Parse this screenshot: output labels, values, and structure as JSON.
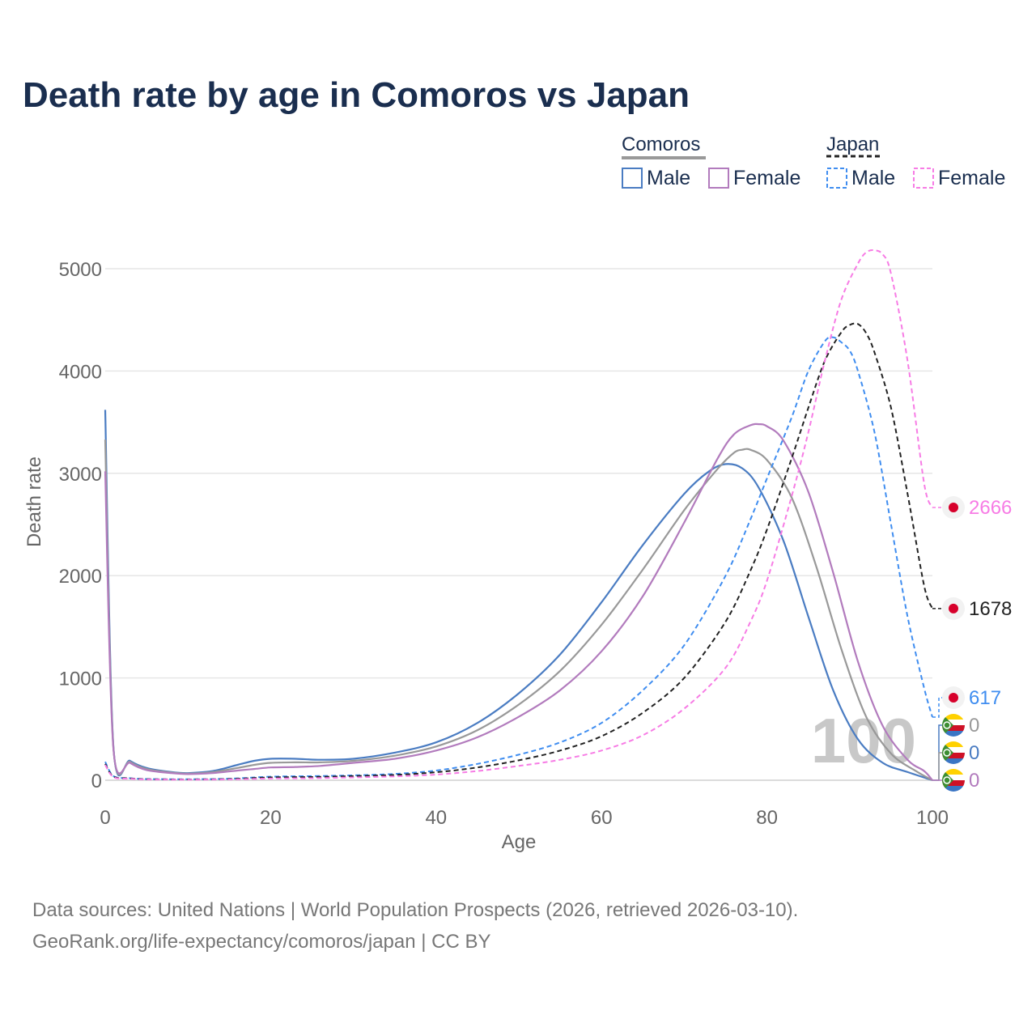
{
  "title": "Death rate by age in Comoros vs Japan",
  "legend": {
    "groups": [
      {
        "name": "Comoros",
        "dash": "solid",
        "line_color": "#999999"
      },
      {
        "name": "Japan",
        "dash": "dashed",
        "line_color": "#222222"
      }
    ],
    "items": [
      {
        "label": "Male",
        "group": "Comoros",
        "color": "#4a7cc2",
        "dash": "solid"
      },
      {
        "label": "Female",
        "group": "Comoros",
        "color": "#b27bbd",
        "dash": "solid"
      },
      {
        "label": "Male",
        "group": "Japan",
        "color": "#3f8df0",
        "dash": "dashed"
      },
      {
        "label": "Female",
        "group": "Japan",
        "color": "#f77ce5",
        "dash": "dashed"
      }
    ]
  },
  "watermark": "100",
  "source_line1": "Data sources: United Nations | World Population Prospects (2026, retrieved 2026-03-10).",
  "source_line2": "GeoRank.org/life-expectancy/comoros/japan | CC BY",
  "chart_data": {
    "type": "line",
    "title": "Death rate by age in Comoros vs Japan",
    "xlabel": "Age",
    "ylabel": "Death rate",
    "xlim": [
      0,
      100
    ],
    "ylim": [
      0,
      5000
    ],
    "x_ticks": [
      0,
      20,
      40,
      60,
      80,
      100
    ],
    "y_ticks": [
      0,
      1000,
      2000,
      3000,
      4000,
      5000
    ],
    "grid": true,
    "series": [
      {
        "name": "Comoros Male",
        "color": "#4a7cc2",
        "dash": "solid",
        "width": 2.2,
        "x": [
          0,
          1,
          3,
          5,
          8,
          10,
          13,
          16,
          18,
          20,
          23,
          26,
          30,
          35,
          40,
          45,
          50,
          55,
          60,
          65,
          70,
          73,
          75,
          77,
          79,
          82,
          85,
          88,
          91,
          94,
          97,
          100
        ],
        "y": [
          3620,
          320,
          190,
          120,
          80,
          70,
          90,
          150,
          190,
          210,
          210,
          200,
          210,
          270,
          370,
          560,
          850,
          1230,
          1740,
          2300,
          2800,
          3020,
          3090,
          3050,
          2860,
          2340,
          1600,
          880,
          400,
          170,
          80,
          0
        ],
        "end_label": "0",
        "end_label_color": "#999999",
        "end_flag": "comoros"
      },
      {
        "name": "Comoros (both sexes)",
        "color": "#999999",
        "dash": "solid",
        "width": 2.2,
        "x": [
          0,
          1,
          3,
          5,
          8,
          10,
          13,
          16,
          18,
          20,
          23,
          26,
          30,
          35,
          40,
          45,
          50,
          55,
          60,
          65,
          70,
          74,
          76,
          77,
          78,
          80,
          83,
          86,
          89,
          92,
          95,
          98,
          100
        ],
        "y": [
          3330,
          310,
          180,
          110,
          75,
          65,
          80,
          120,
          150,
          170,
          175,
          175,
          190,
          240,
          330,
          490,
          740,
          1070,
          1520,
          2060,
          2640,
          3040,
          3200,
          3230,
          3230,
          3130,
          2760,
          2080,
          1280,
          620,
          260,
          90,
          0
        ],
        "end_label": "0",
        "end_label_color": "#4a7cc2",
        "end_flag": "comoros"
      },
      {
        "name": "Comoros Female",
        "color": "#b27bbd",
        "dash": "solid",
        "width": 2.2,
        "x": [
          0,
          1,
          3,
          5,
          8,
          10,
          13,
          16,
          18,
          20,
          23,
          26,
          30,
          35,
          40,
          45,
          50,
          55,
          60,
          65,
          70,
          74,
          76,
          78,
          79,
          80,
          82,
          85,
          88,
          91,
          94,
          97,
          99,
          100
        ],
        "y": [
          3020,
          300,
          170,
          100,
          70,
          60,
          70,
          95,
          110,
          125,
          130,
          140,
          170,
          210,
          290,
          420,
          620,
          880,
          1260,
          1800,
          2520,
          3140,
          3380,
          3470,
          3480,
          3460,
          3320,
          2820,
          2030,
          1160,
          530,
          200,
          90,
          0
        ],
        "end_label": "0",
        "end_label_color": "#b27bbd",
        "end_flag": "comoros"
      },
      {
        "name": "Japan Male",
        "color": "#3f8df0",
        "dash": "dashed",
        "width": 2,
        "x": [
          0,
          1,
          3,
          5,
          10,
          15,
          20,
          25,
          30,
          35,
          40,
          45,
          50,
          55,
          60,
          65,
          70,
          75,
          78,
          80,
          83,
          85,
          87,
          88,
          89,
          90,
          91,
          93,
          95,
          97,
          99,
          100
        ],
        "y": [
          180,
          40,
          20,
          12,
          10,
          15,
          35,
          40,
          48,
          62,
          95,
          160,
          250,
          370,
          560,
          880,
          1320,
          2000,
          2550,
          2950,
          3550,
          4000,
          4290,
          4330,
          4280,
          4200,
          4000,
          3400,
          2500,
          1600,
          900,
          617
        ],
        "end_label": "617",
        "end_label_color": "#3f8df0",
        "end_flag": "japan"
      },
      {
        "name": "Japan (both sexes)",
        "color": "#222222",
        "dash": "dashed",
        "width": 2,
        "x": [
          0,
          1,
          3,
          5,
          10,
          15,
          20,
          25,
          30,
          35,
          40,
          45,
          50,
          55,
          60,
          65,
          70,
          75,
          78,
          80,
          83,
          85,
          87,
          89,
          90,
          91,
          92,
          93,
          95,
          97,
          99,
          100
        ],
        "y": [
          160,
          35,
          18,
          10,
          8,
          12,
          28,
          32,
          40,
          52,
          78,
          125,
          195,
          290,
          430,
          660,
          1000,
          1550,
          2050,
          2450,
          3150,
          3640,
          4100,
          4380,
          4450,
          4460,
          4370,
          4180,
          3640,
          2800,
          1900,
          1678
        ],
        "end_label": "1678",
        "end_label_color": "#222222",
        "end_flag": "japan"
      },
      {
        "name": "Japan Female",
        "color": "#f77ce5",
        "dash": "dashed",
        "width": 2,
        "x": [
          0,
          1,
          3,
          5,
          10,
          15,
          20,
          25,
          30,
          35,
          40,
          45,
          50,
          55,
          60,
          65,
          70,
          75,
          78,
          80,
          83,
          85,
          87,
          89,
          91,
          92,
          93,
          94,
          95,
          97,
          99,
          100
        ],
        "y": [
          150,
          30,
          15,
          8,
          6,
          8,
          17,
          20,
          28,
          38,
          55,
          90,
          140,
          200,
          290,
          440,
          700,
          1100,
          1550,
          1950,
          2780,
          3400,
          4100,
          4700,
          5050,
          5160,
          5180,
          5140,
          4950,
          4100,
          2900,
          2666
        ],
        "end_label": "2666",
        "end_label_color": "#f77ce5",
        "end_flag": "japan"
      }
    ]
  }
}
